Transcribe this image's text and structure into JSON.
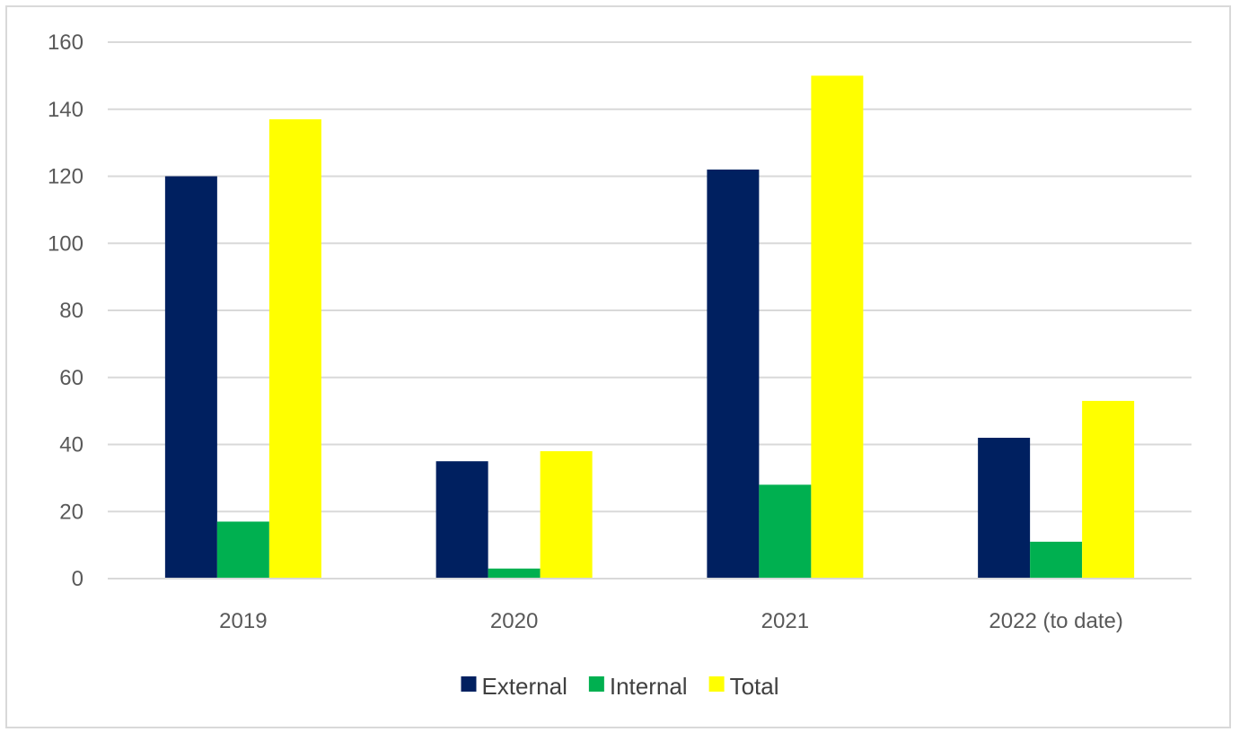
{
  "chart_data": {
    "type": "bar",
    "categories": [
      "2019",
      "2020",
      "2021",
      "2022 (to date)"
    ],
    "series": [
      {
        "name": "External",
        "color": "#002060",
        "values": [
          120,
          35,
          122,
          42
        ]
      },
      {
        "name": "Internal",
        "color": "#00b050",
        "values": [
          17,
          3,
          28,
          11
        ]
      },
      {
        "name": "Total",
        "color": "#ffff00",
        "values": [
          137,
          38,
          150,
          53
        ]
      }
    ],
    "y_ticks": [
      "0",
      "20",
      "40",
      "60",
      "80",
      "100",
      "120",
      "140",
      "160"
    ],
    "ylim": [
      0,
      160
    ],
    "grid": true,
    "legend_position": "bottom"
  }
}
